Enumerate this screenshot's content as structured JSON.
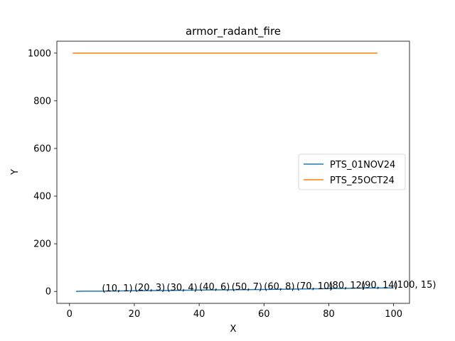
{
  "chart_data": {
    "type": "line",
    "title": "armor_radant_fire",
    "xlabel": "X",
    "ylabel": "Y",
    "xlim": [
      -3.9,
      104.9
    ],
    "ylim": [
      -50,
      1050
    ],
    "xticks": [
      0,
      20,
      40,
      60,
      80,
      100
    ],
    "yticks": [
      0,
      200,
      400,
      600,
      800,
      1000
    ],
    "grid": false,
    "legend_position": "center-right",
    "series": [
      {
        "name": "PTS_01NOV24",
        "color": "#1f77b4",
        "x": [
          2,
          4,
          10,
          20,
          30,
          40,
          50,
          60,
          70,
          80,
          90,
          100
        ],
        "y": [
          0,
          1,
          1,
          3,
          4,
          6,
          7,
          8,
          10,
          12,
          14,
          15
        ]
      },
      {
        "name": "PTS_25OCT24",
        "color": "#ff7f0e",
        "x": [
          1,
          95
        ],
        "y": [
          1000,
          1000
        ]
      }
    ],
    "annotations": [
      {
        "text": "(10, 1)",
        "x": 10,
        "y": 1
      },
      {
        "text": "(20, 3)",
        "x": 20,
        "y": 3
      },
      {
        "text": "(30, 4)",
        "x": 30,
        "y": 4
      },
      {
        "text": "(40, 6)",
        "x": 40,
        "y": 6
      },
      {
        "text": "(50, 7)",
        "x": 50,
        "y": 7
      },
      {
        "text": "(60, 8)",
        "x": 60,
        "y": 8
      },
      {
        "text": "(70, 10)",
        "x": 70,
        "y": 10
      },
      {
        "text": "(80, 12)",
        "x": 80,
        "y": 12
      },
      {
        "text": "(90, 14)",
        "x": 90,
        "y": 14
      },
      {
        "text": "(100, 15)",
        "x": 100,
        "y": 15
      }
    ]
  }
}
